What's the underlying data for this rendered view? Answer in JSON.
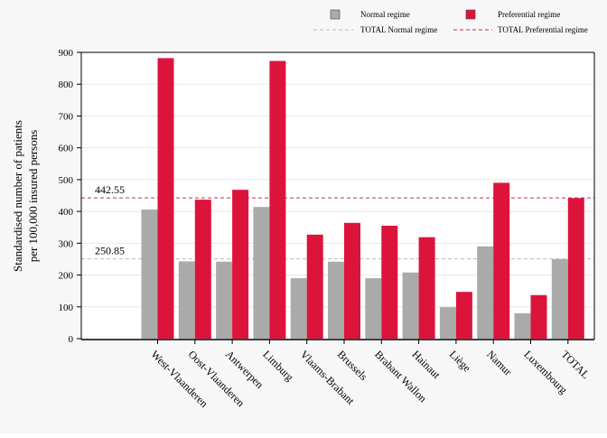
{
  "chart_data": {
    "type": "bar",
    "ylabel_line1": "Standardised number of patients",
    "ylabel_line2": "per 100,000 insured persons",
    "ylim": [
      0,
      900
    ],
    "yticks": [
      0,
      100,
      200,
      300,
      400,
      500,
      600,
      700,
      800,
      900
    ],
    "grid": true,
    "legend_position": "top-right",
    "categories": [
      "West-Vlaanderen",
      "Oost-Vlaanderen",
      "Antwerpen",
      "Limburg",
      "Vlaams-Brabant",
      "Brussels",
      "Brabant Wallon",
      "Hainaut",
      "Liège",
      "Namur",
      "Luxembourg",
      "TOTAL"
    ],
    "series": [
      {
        "name": "Normal regime",
        "color": "#aaaaaa",
        "values": [
          406,
          243,
          242,
          414,
          190,
          242,
          190,
          208,
          99,
          290,
          80,
          250
        ]
      },
      {
        "name": "Preferential regime",
        "color": "#dc143c",
        "values": [
          882,
          437,
          468,
          873,
          327,
          364,
          355,
          319,
          147,
          490,
          137,
          442
        ]
      }
    ],
    "reference_lines": [
      {
        "name": "TOTAL Normal regime",
        "value": 250.85,
        "label": "250.85",
        "color": "#bbbbbb"
      },
      {
        "name": "TOTAL Preferential regime",
        "value": 442.55,
        "label": "442.55",
        "color": "#c0305a"
      }
    ]
  }
}
